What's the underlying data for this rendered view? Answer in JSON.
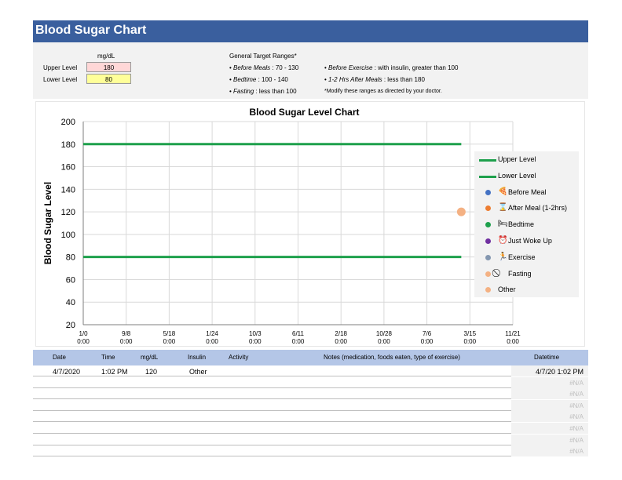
{
  "header": {
    "title": "Blood Sugar Chart"
  },
  "settings": {
    "units_label": "mg/dL",
    "upper_label": "Upper Level",
    "upper_value": "180",
    "lower_label": "Lower Level",
    "lower_value": "80",
    "ranges_title": "General Target Ranges*",
    "ranges": [
      {
        "term": "Before Meals",
        "text": " : 70 - 130"
      },
      {
        "term": "Bedtime",
        "text": " : 100 - 140"
      },
      {
        "term": "Fasting",
        "text": " : less than 100"
      },
      {
        "term": "Before Exercise",
        "text": " : with insulin, greater than 100"
      },
      {
        "term": "1-2 Hrs After Meals",
        "text": " : less than 180"
      }
    ],
    "disclaimer": "*Modify these ranges as directed by your doctor."
  },
  "chart_data": {
    "type": "scatter",
    "title": "Blood Sugar Level Chart",
    "ylabel": "Blood Sugar Level",
    "xlabel": "",
    "ylim": [
      20,
      200
    ],
    "y_ticks": [
      "20",
      "40",
      "60",
      "80",
      "100",
      "120",
      "140",
      "160",
      "180",
      "200"
    ],
    "x_ticks": [
      [
        "1/0",
        "0:00"
      ],
      [
        "9/8",
        "0:00"
      ],
      [
        "5/18",
        "0:00"
      ],
      [
        "1/24",
        "0:00"
      ],
      [
        "10/3",
        "0:00"
      ],
      [
        "6/11",
        "0:00"
      ],
      [
        "2/18",
        "0:00"
      ],
      [
        "10/28",
        "0:00"
      ],
      [
        "7/6",
        "0:00"
      ],
      [
        "3/15",
        "0:00"
      ],
      [
        "11/21",
        "0:00"
      ]
    ],
    "x_tick_count": 11,
    "x_range_ticks": [
      0,
      10
    ],
    "series": [
      {
        "name": "Upper Level",
        "kind": "line",
        "color": "#1ea04c",
        "value": 180,
        "x_from_tick": 0,
        "x_to_tick": 8.8
      },
      {
        "name": "Lower Level",
        "kind": "line",
        "color": "#1ea04c",
        "value": 80,
        "x_from_tick": 0,
        "x_to_tick": 8.8
      },
      {
        "name": "Other",
        "kind": "point",
        "color": "#f4b183",
        "points": [
          {
            "x_tick": 8.8,
            "y": 120,
            "datetime": "4/7/20 1:02 PM"
          }
        ]
      }
    ],
    "grid": true,
    "legend_placement": "right"
  },
  "legend": [
    {
      "label": "Upper Level",
      "kind": "line",
      "color": "#1ea04c"
    },
    {
      "label": "Lower Level",
      "kind": "line",
      "color": "#1ea04c"
    },
    {
      "label": "Before Meal",
      "kind": "dot",
      "color": "#4472c4",
      "icon": "pizza-icon",
      "glyph": "🍕"
    },
    {
      "label": "After Meal (1-2hrs)",
      "kind": "dot",
      "color": "#ed7d31",
      "icon": "hourglass-icon",
      "glyph": "⌛"
    },
    {
      "label": "Bedtime",
      "kind": "dot",
      "color": "#1ea04c",
      "icon": "bed-icon",
      "glyph": "🛏"
    },
    {
      "label": "Just Woke Up",
      "kind": "dot",
      "color": "#7030a0",
      "icon": "alarm-clock-icon",
      "glyph": "⏰"
    },
    {
      "label": "Exercise",
      "kind": "dot",
      "color": "#8497b0",
      "icon": "runner-icon",
      "glyph": "🏃"
    },
    {
      "label": "Fasting",
      "kind": "dot",
      "color": "#f4b183",
      "icon": "no-symbol-icon",
      "glyph": "⃠"
    },
    {
      "label": "Other",
      "kind": "dot",
      "color": "#f4b183",
      "icon": "",
      "glyph": ""
    }
  ],
  "table": {
    "headers": [
      "Date",
      "Time",
      "mg/dL",
      "Insulin",
      "Activity",
      "Notes (medication, foods eaten, type of exercise)",
      "Datetime"
    ],
    "rows": [
      [
        "4/7/2020",
        "1:02 PM",
        "120",
        "Other",
        "",
        "",
        "4/7/20 1:02 PM"
      ],
      [
        "",
        "",
        "",
        "",
        "",
        "",
        "#N/A"
      ],
      [
        "",
        "",
        "",
        "",
        "",
        "",
        "#N/A"
      ],
      [
        "",
        "",
        "",
        "",
        "",
        "",
        "#N/A"
      ],
      [
        "",
        "",
        "",
        "",
        "",
        "",
        "#N/A"
      ],
      [
        "",
        "",
        "",
        "",
        "",
        "",
        "#N/A"
      ],
      [
        "",
        "",
        "",
        "",
        "",
        "",
        "#N/A"
      ],
      [
        "",
        "",
        "",
        "",
        "",
        "",
        "#N/A"
      ]
    ]
  },
  "colors": {
    "header_bg": "#3a5f9e",
    "table_header_bg": "#b4c6e7",
    "upper_fill": "#ffd7d7",
    "lower_fill": "#ffff99"
  }
}
